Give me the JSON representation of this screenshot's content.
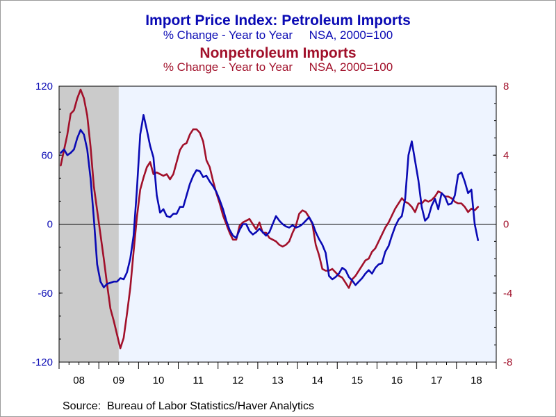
{
  "titles": {
    "line1": "Import Price Index: Petroleum Imports",
    "line2": "% Change - Year to Year     NSA, 2000=100",
    "line3": "Nonpetroleum Imports",
    "line4": "% Change - Year to Year     NSA, 2000=100"
  },
  "source": "Source:  Bureau of Labor Statistics/Haver Analytics",
  "colors": {
    "petroleum": "#0a0ab4",
    "nonpetroleum": "#a1102a",
    "plot_bg": "#eef4ff",
    "recession": "#cbcbcb"
  },
  "chart_data": {
    "type": "line",
    "x_start": "2008-01",
    "x_end": "2018-12",
    "xtick_labels": [
      "08",
      "09",
      "10",
      "11",
      "12",
      "13",
      "14",
      "15",
      "16",
      "17",
      "18"
    ],
    "left_axis": {
      "ylim": [
        -120,
        120
      ],
      "ticks": [
        "120",
        "60",
        "0",
        "-60",
        "-120"
      ]
    },
    "right_axis": {
      "ylim": [
        -8,
        8
      ],
      "ticks": [
        "8",
        "4",
        "0",
        "-4",
        "-8"
      ]
    },
    "recession_shading": [
      "2008-01",
      "2009-06"
    ],
    "zero_line": true,
    "series": [
      {
        "name": "Petroleum Imports",
        "axis": "left",
        "start": "2008-01",
        "values": [
          62,
          65,
          60,
          62,
          65,
          75,
          82,
          78,
          65,
          40,
          5,
          -35,
          -50,
          -55,
          -52,
          -51,
          -50,
          -50,
          -47,
          -48,
          -42,
          -30,
          -10,
          30,
          78,
          95,
          82,
          68,
          58,
          25,
          10,
          13,
          7,
          6,
          9,
          9,
          15,
          15,
          25,
          35,
          42,
          47,
          46,
          41,
          42,
          37,
          33,
          28,
          21,
          13,
          3,
          -5,
          -10,
          -12,
          -5,
          0,
          0,
          -6,
          -9,
          -7,
          -4,
          -7,
          -10,
          -7,
          0,
          7,
          3,
          0,
          -2,
          -3,
          -1,
          -3,
          -2,
          0,
          3,
          6,
          1,
          -7,
          -13,
          -18,
          -25,
          -45,
          -48,
          -46,
          -43,
          -38,
          -40,
          -46,
          -49,
          -53,
          -50,
          -47,
          -43,
          -40,
          -43,
          -38,
          -35,
          -34,
          -24,
          -19,
          -10,
          -2,
          4,
          7,
          22,
          60,
          72,
          55,
          38,
          15,
          3,
          6,
          16,
          22,
          13,
          27,
          24,
          17,
          18,
          25,
          43,
          45,
          37,
          27,
          30,
          0,
          -14
        ]
      },
      {
        "name": "Nonpetroleum Imports",
        "axis": "right",
        "start": "2008-01",
        "values": [
          3.4,
          4.3,
          5.2,
          6.4,
          6.6,
          7.3,
          7.8,
          7.3,
          6.3,
          4.5,
          2.2,
          0.8,
          -0.6,
          -2.0,
          -3.5,
          -4.9,
          -5.6,
          -6.4,
          -7.2,
          -6.6,
          -5.2,
          -3.7,
          -1.6,
          0.4,
          2.0,
          2.7,
          3.3,
          3.6,
          2.9,
          3.0,
          2.9,
          2.8,
          2.9,
          2.6,
          2.9,
          3.6,
          4.3,
          4.6,
          4.7,
          5.2,
          5.5,
          5.5,
          5.3,
          4.8,
          3.7,
          3.3,
          2.5,
          1.8,
          1.2,
          0.5,
          0.0,
          -0.5,
          -0.9,
          -0.9,
          -0.1,
          0.1,
          0.2,
          0.3,
          0.0,
          -0.3,
          0.1,
          -0.5,
          -0.5,
          -0.8,
          -0.9,
          -1.0,
          -1.2,
          -1.3,
          -1.2,
          -1.0,
          -0.5,
          -0.1,
          0.6,
          0.8,
          0.7,
          0.4,
          0.0,
          -1.2,
          -1.8,
          -2.6,
          -2.7,
          -2.7,
          -2.6,
          -2.8,
          -3.0,
          -3.1,
          -3.4,
          -3.7,
          -3.2,
          -3.0,
          -2.7,
          -2.4,
          -2.1,
          -2.0,
          -1.6,
          -1.4,
          -1.0,
          -0.6,
          -0.2,
          0.1,
          0.5,
          0.9,
          1.2,
          1.5,
          1.3,
          1.2,
          1.0,
          0.7,
          1.2,
          1.2,
          1.4,
          1.3,
          1.4,
          1.6,
          1.9,
          1.8,
          1.6,
          1.6,
          1.5,
          1.3,
          1.2,
          1.2,
          1.0,
          0.7,
          0.9,
          0.8,
          1.0
        ]
      }
    ]
  }
}
